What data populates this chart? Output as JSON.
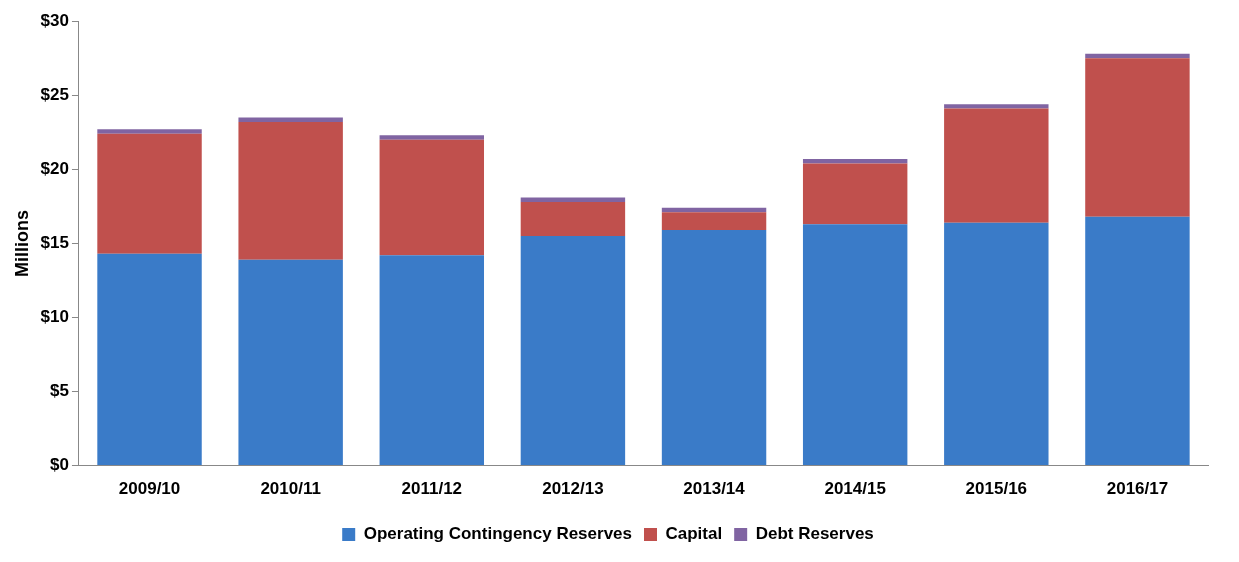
{
  "chart_data": {
    "type": "bar",
    "ylabel": "Millions",
    "categories": [
      "2009/10",
      "2010/11",
      "2011/12",
      "2012/13",
      "2013/14",
      "2014/15",
      "2015/16",
      "2016/17"
    ],
    "series": [
      {
        "name": "Operating Contingency Reserves",
        "color": "#3a7bc8",
        "values": [
          14.3,
          13.9,
          14.2,
          15.5,
          15.9,
          16.3,
          16.4,
          16.8
        ]
      },
      {
        "name": "Capital",
        "color": "#c0504d",
        "values": [
          8.1,
          9.3,
          7.8,
          2.3,
          1.2,
          4.1,
          7.7,
          10.7
        ]
      },
      {
        "name": "Debt Reserves",
        "color": "#8064a2",
        "values": [
          0.3,
          0.3,
          0.3,
          0.3,
          0.3,
          0.3,
          0.3,
          0.3
        ]
      }
    ],
    "stacked": true,
    "ylim": [
      0,
      30
    ],
    "yticks": [
      {
        "value": 0,
        "label": "$0"
      },
      {
        "value": 5,
        "label": "$5"
      },
      {
        "value": 10,
        "label": "$10"
      },
      {
        "value": 15,
        "label": "$15"
      },
      {
        "value": 20,
        "label": "$20"
      },
      {
        "value": 25,
        "label": "$25"
      },
      {
        "value": 30,
        "label": "$30"
      }
    ],
    "grid": false,
    "legend": "bottom"
  }
}
